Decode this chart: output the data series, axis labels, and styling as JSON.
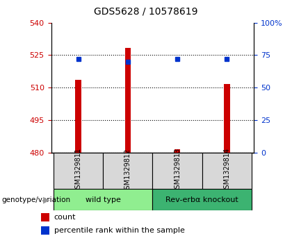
{
  "title": "GDS5628 / 10578619",
  "samples": [
    "GSM1329811",
    "GSM1329812",
    "GSM1329813",
    "GSM1329814"
  ],
  "count_values": [
    513.5,
    528.5,
    481.5,
    511.5
  ],
  "percentile_values": [
    519.5,
    521.5,
    519.0,
    519.5
  ],
  "ylim_left": [
    480,
    540
  ],
  "yticks_left": [
    480,
    495,
    510,
    525,
    540
  ],
  "ylim_right": [
    0,
    100
  ],
  "yticks_right": [
    0,
    25,
    50,
    75,
    100
  ],
  "bar_color": "#cc0000",
  "dot_color": "#0033cc",
  "bar_width": 0.12,
  "groups": [
    {
      "label": "wild type",
      "samples": [
        0,
        1
      ],
      "color": "#90ee90"
    },
    {
      "label": "Rev-erbα knockout",
      "samples": [
        2,
        3
      ],
      "color": "#3cb371"
    }
  ],
  "legend_items": [
    {
      "color": "#cc0000",
      "label": "count"
    },
    {
      "color": "#0033cc",
      "label": "percentile rank within the sample"
    }
  ],
  "left_color": "#cc0000",
  "right_color": "#0033cc",
  "grid_color": "black",
  "sample_bg": "#d8d8d8",
  "plot_bg": "white"
}
